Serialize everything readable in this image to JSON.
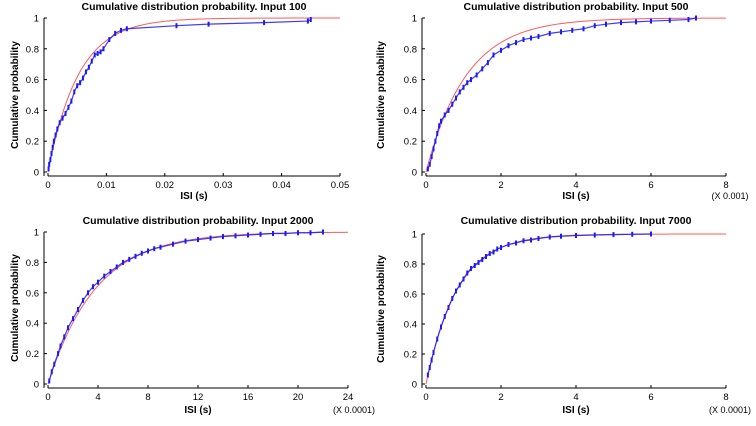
{
  "colors": {
    "empirical": "#1a1aff",
    "fitted": "#ff5a5a",
    "axis": "#000000"
  },
  "chart_data": [
    {
      "type": "scatter",
      "title": "Cumulative distribution probability. Input 100",
      "xlabel": "ISI (s)",
      "ylabel": "Cumulative probability",
      "x_multiplier": "",
      "xlim": [
        0,
        0.05
      ],
      "ylim": [
        0,
        1
      ],
      "x_ticks": [
        "0",
        "0.01",
        "0.02",
        "0.03",
        "0.04",
        "0.05"
      ],
      "y_ticks": [
        "0",
        "0.2",
        "0.4",
        "0.6",
        "0.8",
        "1"
      ],
      "grid": false,
      "legend": "none",
      "fit_rate": 192,
      "series": [
        {
          "kind": "empirical-cdf",
          "x": [
            0.0001,
            0.0002,
            0.0004,
            0.0006,
            0.0008,
            0.001,
            0.0013,
            0.0016,
            0.002,
            0.0025,
            0.003,
            0.0035,
            0.004,
            0.0045,
            0.005,
            0.0055,
            0.006,
            0.0065,
            0.007,
            0.0075,
            0.008,
            0.0085,
            0.009,
            0.0095,
            0.0105,
            0.0115,
            0.0125,
            0.0135,
            0.022,
            0.0275,
            0.037,
            0.0445,
            0.045
          ],
          "y": [
            0.02,
            0.05,
            0.08,
            0.12,
            0.16,
            0.2,
            0.24,
            0.28,
            0.32,
            0.35,
            0.38,
            0.42,
            0.46,
            0.52,
            0.56,
            0.58,
            0.61,
            0.65,
            0.68,
            0.72,
            0.76,
            0.77,
            0.78,
            0.8,
            0.86,
            0.9,
            0.92,
            0.93,
            0.95,
            0.96,
            0.97,
            0.98,
            0.99
          ]
        },
        {
          "kind": "fitted-exponential"
        }
      ]
    },
    {
      "type": "scatter",
      "title": "Cumulative distribution probability. Input 500",
      "xlabel": "ISI (s)",
      "ylabel": "Cumulative probability",
      "x_multiplier": "(X 0.001)",
      "xlim": [
        0,
        8
      ],
      "ylim": [
        0,
        1
      ],
      "x_ticks": [
        "0",
        "2",
        "4",
        "6",
        "8"
      ],
      "y_ticks": [
        "0",
        "0.2",
        "0.4",
        "0.6",
        "0.8",
        "1"
      ],
      "grid": false,
      "legend": "none",
      "fit_rate": 0.92,
      "series": [
        {
          "kind": "empirical-cdf",
          "x": [
            0.05,
            0.1,
            0.15,
            0.2,
            0.25,
            0.3,
            0.35,
            0.4,
            0.5,
            0.6,
            0.7,
            0.8,
            0.9,
            1.0,
            1.1,
            1.2,
            1.35,
            1.5,
            1.65,
            1.8,
            2.0,
            2.2,
            2.4,
            2.6,
            2.8,
            3.0,
            3.3,
            3.6,
            3.9,
            4.2,
            4.5,
            4.8,
            5.2,
            5.6,
            6.0,
            6.5,
            7.0,
            7.2
          ],
          "y": [
            0.02,
            0.05,
            0.1,
            0.15,
            0.2,
            0.25,
            0.3,
            0.33,
            0.37,
            0.4,
            0.44,
            0.48,
            0.52,
            0.55,
            0.58,
            0.6,
            0.63,
            0.67,
            0.71,
            0.76,
            0.79,
            0.82,
            0.84,
            0.86,
            0.87,
            0.88,
            0.9,
            0.91,
            0.92,
            0.93,
            0.95,
            0.96,
            0.97,
            0.975,
            0.98,
            0.985,
            0.99,
            1.0
          ]
        },
        {
          "kind": "fitted-exponential"
        }
      ]
    },
    {
      "type": "scatter",
      "title": "Cumulative distribution probability. Input 2000",
      "xlabel": "ISI (s)",
      "ylabel": "Cumulative probability",
      "x_multiplier": "(X 0.0001)",
      "xlim": [
        0,
        24
      ],
      "ylim": [
        0,
        1
      ],
      "x_ticks": [
        "0",
        "4",
        "8",
        "12",
        "16",
        "20",
        "24"
      ],
      "y_ticks": [
        "0",
        "0.2",
        "0.4",
        "0.6",
        "0.8",
        "1"
      ],
      "grid": false,
      "legend": "none",
      "fit_rate": 0.26,
      "series": [
        {
          "kind": "empirical-cdf",
          "x": [
            0.1,
            0.3,
            0.5,
            0.8,
            1.0,
            1.3,
            1.6,
            2.0,
            2.4,
            2.8,
            3.2,
            3.6,
            4.0,
            4.5,
            5.0,
            5.5,
            6.0,
            6.5,
            7.0,
            7.5,
            8.0,
            8.5,
            9,
            10,
            11,
            12,
            13,
            14,
            15,
            16,
            17,
            18,
            19,
            20,
            21,
            22
          ],
          "y": [
            0.02,
            0.08,
            0.13,
            0.2,
            0.25,
            0.31,
            0.37,
            0.43,
            0.49,
            0.55,
            0.6,
            0.64,
            0.67,
            0.71,
            0.74,
            0.77,
            0.8,
            0.82,
            0.84,
            0.86,
            0.875,
            0.89,
            0.9,
            0.92,
            0.94,
            0.95,
            0.96,
            0.97,
            0.975,
            0.98,
            0.985,
            0.99,
            0.99,
            0.995,
            0.995,
            1.0
          ]
        },
        {
          "kind": "fitted-exponential"
        }
      ]
    },
    {
      "type": "scatter",
      "title": "Cumulative distribution probability. Input 7000",
      "xlabel": "ISI (s)",
      "ylabel": "Cumulative probability",
      "x_multiplier": "(X 0.0001)",
      "xlim": [
        0,
        8
      ],
      "ylim": [
        0,
        1
      ],
      "x_ticks": [
        "0",
        "2",
        "4",
        "6",
        "8"
      ],
      "y_ticks": [
        "0",
        "0.2",
        "0.4",
        "0.6",
        "0.8",
        "1"
      ],
      "grid": false,
      "legend": "none",
      "fit_rate": 1.2,
      "series": [
        {
          "kind": "empirical-cdf",
          "x": [
            0.05,
            0.1,
            0.15,
            0.2,
            0.3,
            0.4,
            0.5,
            0.6,
            0.7,
            0.8,
            0.9,
            1.0,
            1.1,
            1.2,
            1.3,
            1.4,
            1.5,
            1.6,
            1.7,
            1.8,
            1.9,
            2.0,
            2.2,
            2.4,
            2.6,
            2.8,
            3.0,
            3.3,
            3.6,
            4.0,
            4.5,
            5.0,
            5.5,
            6.0
          ],
          "y": [
            0.06,
            0.11,
            0.16,
            0.21,
            0.3,
            0.38,
            0.45,
            0.51,
            0.57,
            0.62,
            0.66,
            0.7,
            0.74,
            0.77,
            0.79,
            0.81,
            0.83,
            0.85,
            0.87,
            0.88,
            0.9,
            0.91,
            0.93,
            0.94,
            0.955,
            0.96,
            0.97,
            0.98,
            0.985,
            0.99,
            0.993,
            0.996,
            0.998,
            1.0
          ]
        },
        {
          "kind": "fitted-exponential"
        }
      ]
    }
  ]
}
